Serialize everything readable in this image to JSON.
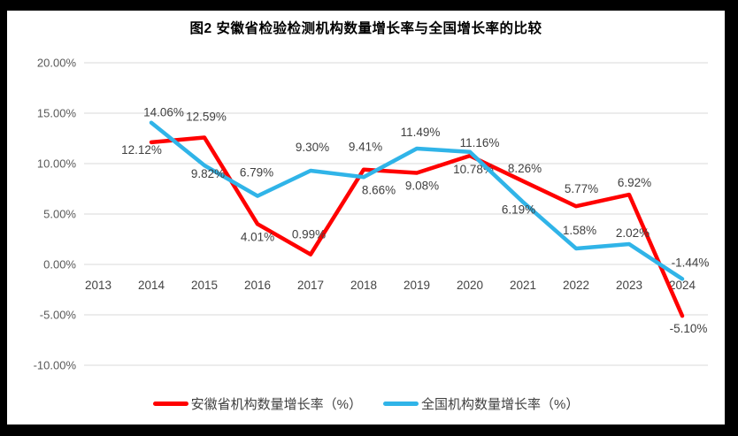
{
  "title": "图2 安徽省检验检测机构数量增长率与全国增长率的比较",
  "colors": {
    "frame": "#000000",
    "background": "#ffffff",
    "grid": "#d9d9d9",
    "tick_text": "#595959",
    "data_label_text": "#3f3f3f",
    "anhui_red": "#ff0000",
    "national_blue": "#30b4e8"
  },
  "chart_data": {
    "type": "line",
    "title": "图2 安徽省检验检测机构数量增长率与全国增长率的比较",
    "categories": [
      "2013",
      "2014",
      "2015",
      "2016",
      "2017",
      "2018",
      "2019",
      "2020",
      "2021",
      "2022",
      "2023",
      "2024"
    ],
    "series": [
      {
        "name": "安徽省机构数量增长率（%）",
        "color": "#ff0000",
        "values": [
          null,
          12.12,
          12.59,
          4.01,
          0.99,
          9.41,
          9.08,
          10.78,
          8.26,
          5.77,
          6.92,
          -5.1
        ],
        "labels": [
          null,
          "12.12%",
          "12.59%",
          "4.01%",
          "0.99%",
          "9.41%",
          "9.08%",
          "10.78%",
          "8.26%",
          "5.77%",
          "6.92%",
          "-5.10%"
        ]
      },
      {
        "name": "全国机构数量增长率（%）",
        "color": "#30b4e8",
        "values": [
          null,
          14.06,
          9.82,
          6.79,
          9.3,
          8.66,
          11.49,
          11.16,
          6.19,
          1.58,
          2.02,
          -1.44
        ],
        "labels": [
          null,
          "14.06%",
          "9.82%",
          "6.79%",
          "9.30%",
          "8.66%",
          "11.49%",
          "11.16%",
          "6.19%",
          "1.58%",
          "2.02%",
          "-1.44%"
        ]
      }
    ],
    "y_ticks": [
      {
        "value": 20,
        "label": "20.00%"
      },
      {
        "value": 15,
        "label": "15.00%"
      },
      {
        "value": 10,
        "label": "10.00%"
      },
      {
        "value": 5,
        "label": "5.00%"
      },
      {
        "value": 0,
        "label": "0.00%"
      },
      {
        "value": -5,
        "label": "-5.00%"
      },
      {
        "value": -10,
        "label": "-10.00%"
      }
    ],
    "ylim": [
      -10,
      20
    ],
    "grid": true,
    "legend_position": "bottom",
    "xlabel": "",
    "ylabel": ""
  }
}
